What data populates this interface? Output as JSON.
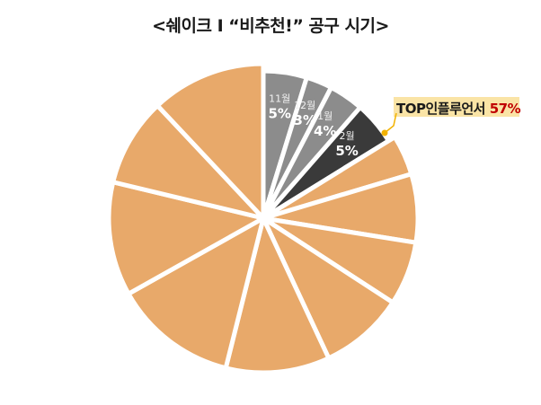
{
  "title": "<쉐이크 I “비추천!” 공구 시기>",
  "callout": {
    "label": "TOP인플루언서",
    "value": "57%"
  },
  "colors": {
    "gray": "#8c8c8c",
    "dark": "#3a3a3a",
    "orange": "#e8a96a",
    "highlight": "#f2b200"
  },
  "chart_data": {
    "type": "pie",
    "title": "<쉐이크 I “비추천!” 공구 시기>",
    "slices": [
      {
        "label": "11월",
        "value": 5,
        "display": "5%",
        "color": "gray",
        "labeled": true
      },
      {
        "label": "12월",
        "value": 3,
        "display": "3%",
        "color": "gray",
        "labeled": true
      },
      {
        "label": "1월",
        "value": 4,
        "display": "4%",
        "color": "gray",
        "labeled": true
      },
      {
        "label": "2월",
        "value": 5,
        "display": "5%",
        "color": "dark",
        "labeled": true
      },
      {
        "label": "",
        "value": 4.4,
        "color": "orange",
        "labeled": false
      },
      {
        "label": "",
        "value": 7.5,
        "color": "orange",
        "labeled": false
      },
      {
        "label": "",
        "value": 7.0,
        "color": "orange",
        "labeled": false
      },
      {
        "label": "",
        "value": 9.3,
        "color": "orange",
        "labeled": false
      },
      {
        "label": "",
        "value": 11.4,
        "color": "orange",
        "labeled": false
      },
      {
        "label": "",
        "value": 13.6,
        "color": "orange",
        "labeled": false
      },
      {
        "label": "",
        "value": 12.5,
        "color": "orange",
        "labeled": false
      },
      {
        "label": "",
        "value": 9.7,
        "color": "orange",
        "labeled": false
      },
      {
        "label": "",
        "value": 12.6,
        "color": "orange",
        "labeled": false
      }
    ]
  }
}
